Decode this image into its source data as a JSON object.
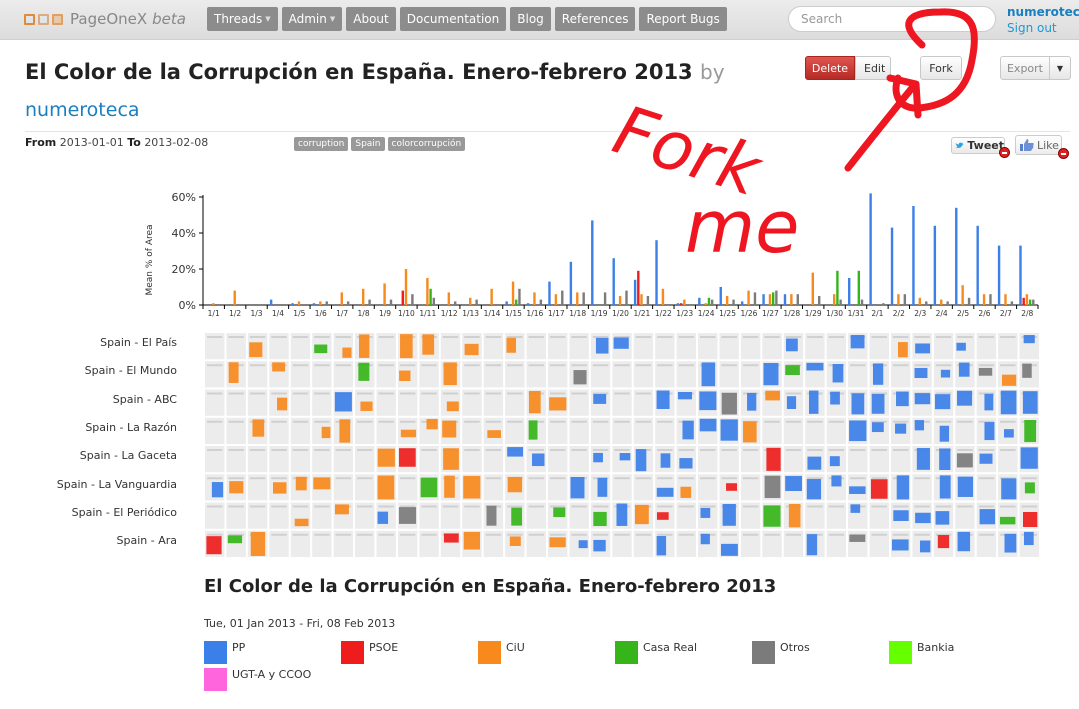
{
  "nav": {
    "brand": "PageOneX",
    "beta": "beta",
    "items": [
      {
        "label": "Threads",
        "dropdown": true
      },
      {
        "label": "Admin",
        "dropdown": true
      },
      {
        "label": "About",
        "dropdown": false
      },
      {
        "label": "Documentation",
        "dropdown": false
      },
      {
        "label": "Blog",
        "dropdown": false
      },
      {
        "label": "References",
        "dropdown": false
      },
      {
        "label": "Report Bugs",
        "dropdown": false
      }
    ],
    "search_placeholder": "Search",
    "username": "numeroteca",
    "signout": "Sign out"
  },
  "thread": {
    "title": "El Color de la Corrupción en España. Enero-febrero 2013",
    "by": "by",
    "author": "numeroteca",
    "from_label": "From",
    "from": "2013-01-01",
    "to_label": "To",
    "to": "2013-02-08",
    "tags": [
      "corruption",
      "Spain",
      "colorcorrupción"
    ]
  },
  "actions": {
    "delete": "Delete",
    "edit": "Edit",
    "fork": "Fork",
    "export": "Export",
    "tweet": "Tweet",
    "like": "Like"
  },
  "annotation": {
    "text_line1": "Fork",
    "text_line2": "me"
  },
  "colors": {
    "PP": "#3b7fe8",
    "PSOE": "#ee1c1c",
    "CiU": "#f7891d",
    "Casa Real": "#35b51a",
    "Otros": "#7b7b7b",
    "Bankia": "#66ff00",
    "UGT-A y CCOO": "#ff66dd"
  },
  "chart_data": {
    "type": "bar",
    "ylabel": "Mean % of Area",
    "yticks": [
      "0%",
      "20%",
      "40%",
      "60%"
    ],
    "ylim": [
      0,
      65
    ],
    "categories": [
      "1/1",
      "1/2",
      "1/3",
      "1/4",
      "1/5",
      "1/6",
      "1/7",
      "1/8",
      "1/9",
      "1/10",
      "1/11",
      "1/12",
      "1/13",
      "1/14",
      "1/15",
      "1/16",
      "1/17",
      "1/18",
      "1/19",
      "1/20",
      "1/21",
      "1/22",
      "1/23",
      "1/24",
      "1/25",
      "1/26",
      "1/27",
      "1/28",
      "1/29",
      "1/30",
      "1/31",
      "2/1",
      "2/2",
      "2/3",
      "2/4",
      "2/5",
      "2/6",
      "2/7",
      "2/8"
    ],
    "series": [
      {
        "name": "PP",
        "values": [
          0,
          0,
          0,
          3,
          1,
          1,
          0,
          0,
          0,
          0,
          0,
          0,
          0,
          0,
          2,
          1,
          13,
          24,
          47,
          26,
          14,
          36,
          1,
          4,
          10,
          2,
          6,
          6,
          0,
          0,
          15,
          62,
          43,
          55,
          44,
          54,
          44,
          33,
          33
        ]
      },
      {
        "name": "PSOE",
        "values": [
          0,
          0,
          0,
          0,
          0,
          0,
          0,
          0,
          0,
          8,
          0,
          0,
          0,
          0,
          0,
          0,
          0,
          0,
          0,
          0,
          19,
          0,
          1,
          0,
          0,
          0,
          0,
          0,
          0,
          0,
          0,
          0,
          0,
          0,
          0,
          0,
          0,
          0,
          4
        ]
      },
      {
        "name": "CiU",
        "values": [
          1,
          8,
          0,
          0,
          2,
          2,
          7,
          9,
          12,
          20,
          15,
          7,
          4,
          9,
          13,
          7,
          6,
          7,
          0,
          5,
          6,
          9,
          3,
          1,
          5,
          8,
          6,
          6,
          18,
          6,
          0,
          0,
          6,
          4,
          3,
          11,
          6,
          6,
          6
        ]
      },
      {
        "name": "Casa Real",
        "values": [
          0,
          0,
          0,
          0,
          0,
          0,
          0,
          0,
          0,
          0,
          9,
          0,
          0,
          0,
          3,
          0,
          0,
          0,
          0,
          0,
          0,
          0,
          0,
          4,
          0,
          0,
          7,
          0,
          0,
          19,
          19,
          0,
          0,
          0,
          0,
          0,
          0,
          0,
          3
        ]
      },
      {
        "name": "Otros",
        "values": [
          0,
          0,
          0,
          0,
          0,
          2,
          2,
          3,
          3,
          6,
          4,
          2,
          3,
          0,
          9,
          3,
          8,
          7,
          7,
          8,
          5,
          0,
          0,
          3,
          3,
          7,
          8,
          6,
          5,
          3,
          3,
          1,
          6,
          2,
          2,
          4,
          6,
          2,
          3
        ]
      }
    ]
  },
  "grid": {
    "rows": [
      "Spain - El País",
      "Spain - El Mundo",
      "Spain - ABC",
      "Spain - La Razón",
      "Spain - La Gaceta",
      "Spain - La Vanguardia",
      "Spain - El Periódico",
      "Spain - Ara"
    ]
  },
  "legend": {
    "title": "El Color de la Corrupción en España. Enero-febrero 2013",
    "dates": "Tue, 01 Jan 2013 - Fri, 08 Feb 2013",
    "items": [
      {
        "name": "PP",
        "color": "#3b7fe8"
      },
      {
        "name": "PSOE",
        "color": "#ee1c1c"
      },
      {
        "name": "CiU",
        "color": "#f7891d"
      },
      {
        "name": "Casa Real",
        "color": "#35b51a"
      },
      {
        "name": "Otros",
        "color": "#7b7b7b"
      },
      {
        "name": "Bankia",
        "color": "#66ff00"
      },
      {
        "name": "UGT-A y CCOO",
        "color": "#ff66dd"
      }
    ]
  }
}
